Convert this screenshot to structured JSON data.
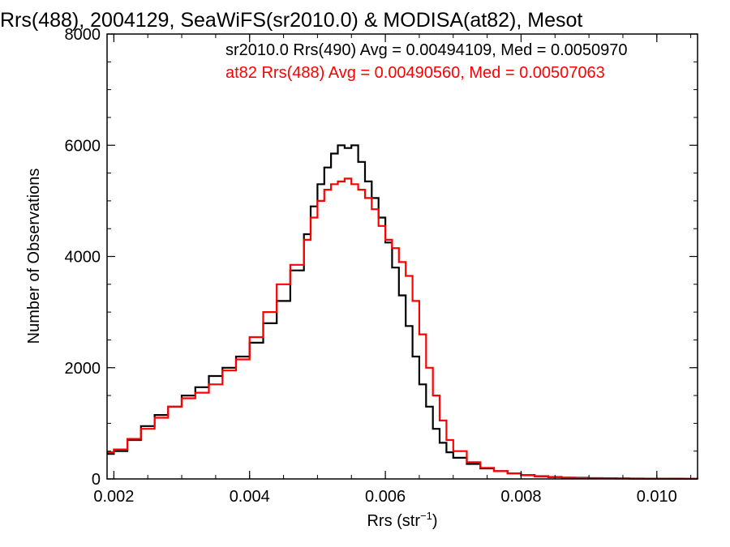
{
  "chart_data": {
    "type": "line",
    "title": "Rrs(488), 2004129, SeaWiFS(sr2010.0) & MODISA(at82), Mesot",
    "xlabel": "Rrs (str",
    "xlabel_sup": "−1",
    "xlabel_end": ")",
    "ylabel": "Number of Observations",
    "xlim": [
      0.0019,
      0.0106
    ],
    "ylim": [
      0,
      8000
    ],
    "xticks": [
      0.002,
      0.004,
      0.006,
      0.008,
      0.01
    ],
    "xtick_labels": [
      "0.002",
      "0.004",
      "0.006",
      "0.008",
      "0.010"
    ],
    "yticks": [
      0,
      2000,
      4000,
      6000,
      8000
    ],
    "ytick_labels": [
      "0",
      "2000",
      "4000",
      "6000",
      "8000"
    ],
    "grid": false,
    "legend_position": "top-right",
    "series": [
      {
        "name": "sr2010.0 Rrs(490) Avg = 0.00494109, Med = 0.0050970",
        "color": "#000000",
        "step": true,
        "x": [
          0.0019,
          0.002,
          0.0022,
          0.0024,
          0.0026,
          0.0028,
          0.003,
          0.0032,
          0.0034,
          0.0036,
          0.0038,
          0.004,
          0.0042,
          0.0044,
          0.0046,
          0.0048,
          0.0049,
          0.005,
          0.0051,
          0.0052,
          0.0053,
          0.0054,
          0.0055,
          0.0056,
          0.0057,
          0.0058,
          0.0059,
          0.006,
          0.0061,
          0.0062,
          0.0063,
          0.0064,
          0.0065,
          0.0066,
          0.0067,
          0.0068,
          0.0069,
          0.007,
          0.0072,
          0.0074,
          0.0076,
          0.0078,
          0.008,
          0.0082,
          0.0084,
          0.0086,
          0.0088,
          0.009,
          0.0092,
          0.0094,
          0.0096,
          0.0098,
          0.01,
          0.0102,
          0.0104,
          0.0106
        ],
        "values": [
          450,
          500,
          700,
          950,
          1150,
          1300,
          1500,
          1650,
          1850,
          2000,
          2200,
          2450,
          2800,
          3200,
          3750,
          4400,
          4900,
          5300,
          5600,
          5850,
          6000,
          5950,
          6000,
          5700,
          5350,
          5050,
          4700,
          4250,
          3800,
          3300,
          2750,
          2200,
          1700,
          1300,
          900,
          650,
          480,
          380,
          270,
          190,
          140,
          100,
          70,
          50,
          35,
          25,
          20,
          15,
          12,
          10,
          8,
          6,
          5,
          4,
          3,
          2
        ]
      },
      {
        "name": "at82 Rrs(488) Avg = 0.00490560, Med = 0.00507063",
        "color": "#ff0000",
        "step": true,
        "x": [
          0.0019,
          0.002,
          0.0022,
          0.0024,
          0.0026,
          0.0028,
          0.003,
          0.0032,
          0.0034,
          0.0036,
          0.0038,
          0.004,
          0.0042,
          0.0044,
          0.0046,
          0.0048,
          0.0049,
          0.005,
          0.0051,
          0.0052,
          0.0053,
          0.0054,
          0.0055,
          0.0056,
          0.0057,
          0.0058,
          0.0059,
          0.006,
          0.0061,
          0.0062,
          0.0063,
          0.0064,
          0.0065,
          0.0066,
          0.0067,
          0.0068,
          0.0069,
          0.007,
          0.0072,
          0.0074,
          0.0076,
          0.0078,
          0.008,
          0.0082,
          0.0084,
          0.0086,
          0.0088,
          0.009,
          0.0092,
          0.0094,
          0.0096,
          0.0098,
          0.01,
          0.0102,
          0.0104,
          0.0106
        ],
        "values": [
          480,
          530,
          720,
          900,
          1100,
          1300,
          1450,
          1550,
          1700,
          1950,
          2150,
          2550,
          3000,
          3500,
          3850,
          4300,
          4700,
          5000,
          5200,
          5300,
          5350,
          5400,
          5300,
          5200,
          5050,
          4850,
          4550,
          4300,
          4150,
          3900,
          3650,
          3200,
          2600,
          2000,
          1500,
          1050,
          700,
          500,
          300,
          200,
          140,
          100,
          65,
          45,
          30,
          20,
          15,
          12,
          10,
          8,
          6,
          5,
          4,
          3,
          2,
          2
        ]
      }
    ]
  }
}
